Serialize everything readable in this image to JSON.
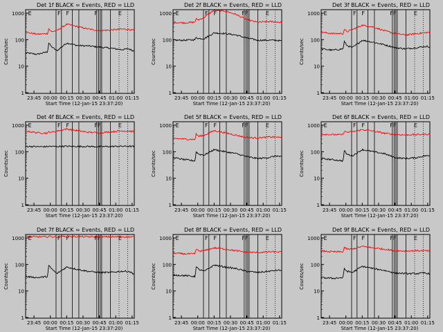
{
  "chart_data": [
    {
      "type": "line",
      "title": "Det 1f BLACK = Events, RED = LLD",
      "xlabel": "Start Time (12-Jan-15 23:37:20)",
      "ylabel": "Counts/sec",
      "xlim": [
        "23:37:20",
        "01:17:00"
      ],
      "ylim": [
        1,
        1000
      ],
      "yscale": "log",
      "x_ticks": [
        "23:45",
        "00:00",
        "00:15",
        "00:30",
        "00:45",
        "01:00",
        "01:15"
      ],
      "y_ticks": [
        "1",
        "10",
        "100",
        "1000"
      ],
      "markers": [
        "F",
        "F",
        "F",
        "E"
      ],
      "series": [
        {
          "name": "BLACK = Events",
          "color": "#000000",
          "x": [
            "23:37:20",
            "23:48:00",
            "23:57:30",
            "23:58:30",
            "00:01:00",
            "00:06:00",
            "00:15:00",
            "00:25:00",
            "00:35:00",
            "00:45:00",
            "00:55:00",
            "01:05:00",
            "01:12:00",
            "01:16:00"
          ],
          "y": [
            32,
            28,
            35,
            75,
            55,
            38,
            75,
            60,
            58,
            52,
            48,
            42,
            45,
            38
          ]
        },
        {
          "name": "RED = LLD",
          "color": "#ff0000",
          "x": [
            "23:37:20",
            "23:48:00",
            "23:57:30",
            "23:58:30",
            "00:01:00",
            "00:06:00",
            "00:15:00",
            "00:25:00",
            "00:35:00",
            "00:45:00",
            "00:55:00",
            "01:05:00",
            "01:12:00",
            "01:16:00"
          ],
          "y": [
            190,
            160,
            170,
            260,
            200,
            220,
            380,
            310,
            250,
            220,
            230,
            250,
            245,
            225
          ]
        }
      ]
    },
    {
      "type": "line",
      "title": "Det 2f BLACK = Events, RED = LLD",
      "xlabel": "Start Time (12-Jan-15 23:37:20)",
      "ylabel": "Counts/sec",
      "xlim": [
        "23:37:20",
        "01:17:00"
      ],
      "ylim": [
        1,
        1000
      ],
      "yscale": "log",
      "x_ticks": [
        "23:45",
        "00:00",
        "00:15",
        "00:30",
        "00:45",
        "01:00",
        "01:15"
      ],
      "y_ticks": [
        "1",
        "10",
        "100",
        "1000"
      ],
      "markers": [
        "F",
        "F",
        "FF",
        "E"
      ],
      "series": [
        {
          "name": "BLACK = Events",
          "color": "#000000",
          "x": [
            "23:37:20",
            "23:48:00",
            "23:57:30",
            "23:58:30",
            "00:01:00",
            "00:06:00",
            "00:15:00",
            "00:25:00",
            "00:35:00",
            "00:45:00",
            "00:55:00",
            "01:05:00",
            "01:12:00",
            "01:16:00"
          ],
          "y": [
            95,
            95,
            100,
            120,
            110,
            110,
            180,
            170,
            150,
            115,
            95,
            95,
            95,
            90
          ]
        },
        {
          "name": "RED = LLD",
          "color": "#ff0000",
          "x": [
            "23:37:20",
            "23:48:00",
            "23:57:30",
            "23:58:30",
            "00:01:00",
            "00:06:00",
            "00:15:00",
            "00:25:00",
            "00:35:00",
            "00:45:00",
            "00:55:00",
            "01:05:00",
            "01:12:00",
            "01:16:00"
          ],
          "y": [
            450,
            430,
            460,
            600,
            560,
            700,
            1300,
            1200,
            900,
            560,
            450,
            480,
            470,
            450
          ]
        }
      ]
    },
    {
      "type": "line",
      "title": "Det 3f BLACK = Events, RED = LLD",
      "xlabel": "Start Time (12-Jan-15 23:37:20)",
      "ylabel": "Counts/sec",
      "xlim": [
        "23:37:20",
        "01:17:00"
      ],
      "ylim": [
        1,
        1000
      ],
      "yscale": "log",
      "x_ticks": [
        "23:45",
        "00:00",
        "00:15",
        "00:30",
        "00:45",
        "01:00",
        "01:15"
      ],
      "y_ticks": [
        "1",
        "10",
        "100",
        "1000"
      ],
      "markers": [
        "F",
        "F",
        "FF",
        "E"
      ],
      "series": [
        {
          "name": "BLACK = Events",
          "color": "#000000",
          "x": [
            "23:37:20",
            "23:48:00",
            "23:57:30",
            "23:58:30",
            "00:01:00",
            "00:06:00",
            "00:15:00",
            "00:25:00",
            "00:35:00",
            "00:45:00",
            "00:55:00",
            "01:05:00",
            "01:12:00",
            "01:16:00"
          ],
          "y": [
            45,
            40,
            45,
            85,
            60,
            50,
            95,
            80,
            65,
            50,
            45,
            50,
            55,
            55
          ]
        },
        {
          "name": "RED = LLD",
          "color": "#ff0000",
          "x": [
            "23:37:20",
            "23:48:00",
            "23:57:30",
            "23:58:30",
            "00:01:00",
            "00:06:00",
            "00:15:00",
            "00:25:00",
            "00:35:00",
            "00:45:00",
            "00:55:00",
            "01:05:00",
            "01:12:00",
            "01:16:00"
          ],
          "y": [
            190,
            170,
            170,
            240,
            200,
            240,
            350,
            300,
            220,
            170,
            150,
            170,
            180,
            190
          ]
        }
      ]
    },
    {
      "type": "line",
      "title": "Det 4f BLACK = Events, RED = LLD",
      "xlabel": "Start Time (12-Jan-15 23:37:20)",
      "ylabel": "Counts/sec",
      "xlim": [
        "23:37:20",
        "01:17:00"
      ],
      "ylim": [
        1,
        1000
      ],
      "yscale": "log",
      "x_ticks": [
        "23:45",
        "00:00",
        "00:15",
        "00:30",
        "00:45",
        "01:00",
        "01:15"
      ],
      "y_ticks": [
        "1",
        "10",
        "100",
        "1000"
      ],
      "markers": [
        "F",
        "F",
        "FF",
        "E"
      ],
      "series": [
        {
          "name": "BLACK = Events",
          "color": "#000000",
          "x": [
            "23:37:20",
            "23:48:00",
            "23:57:30",
            "23:58:30",
            "00:01:00",
            "00:06:00",
            "00:15:00",
            "00:25:00",
            "00:35:00",
            "00:45:00",
            "00:55:00",
            "01:05:00",
            "01:12:00",
            "01:16:00"
          ],
          "y": [
            160,
            155,
            155,
            160,
            158,
            158,
            160,
            158,
            158,
            155,
            158,
            160,
            160,
            158
          ]
        },
        {
          "name": "RED = LLD",
          "color": "#ff0000",
          "x": [
            "23:37:20",
            "23:48:00",
            "23:57:30",
            "23:58:30",
            "00:01:00",
            "00:06:00",
            "00:15:00",
            "00:25:00",
            "00:35:00",
            "00:45:00",
            "00:55:00",
            "01:05:00",
            "01:12:00",
            "01:16:00"
          ],
          "y": [
            600,
            520,
            500,
            560,
            540,
            600,
            720,
            620,
            540,
            520,
            560,
            610,
            600,
            580
          ]
        }
      ]
    },
    {
      "type": "line",
      "title": "Det 5f BLACK = Events, RED = LLD",
      "xlabel": "Start Time (12-Jan-15 23:37:20)",
      "ylabel": "Counts/sec",
      "xlim": [
        "23:37:20",
        "01:17:00"
      ],
      "ylim": [
        1,
        1000
      ],
      "yscale": "log",
      "x_ticks": [
        "23:45",
        "00:00",
        "00:15",
        "00:30",
        "00:45",
        "01:00",
        "01:15"
      ],
      "y_ticks": [
        "1",
        "10",
        "100",
        "1000"
      ],
      "markers": [
        "F",
        "F",
        "FF",
        "E"
      ],
      "series": [
        {
          "name": "BLACK = Events",
          "color": "#000000",
          "x": [
            "23:37:20",
            "23:48:00",
            "23:57:30",
            "23:58:30",
            "00:01:00",
            "00:06:00",
            "00:15:00",
            "00:25:00",
            "00:35:00",
            "00:45:00",
            "00:55:00",
            "01:05:00",
            "01:12:00",
            "01:16:00"
          ],
          "y": [
            60,
            50,
            45,
            100,
            80,
            75,
            120,
            100,
            85,
            65,
            55,
            60,
            70,
            65
          ]
        },
        {
          "name": "RED = LLD",
          "color": "#ff0000",
          "x": [
            "23:37:20",
            "23:48:00",
            "23:57:30",
            "23:58:30",
            "00:01:00",
            "00:06:00",
            "00:15:00",
            "00:25:00",
            "00:35:00",
            "00:45:00",
            "00:55:00",
            "01:05:00",
            "01:12:00",
            "01:16:00"
          ],
          "y": [
            320,
            300,
            290,
            460,
            380,
            420,
            620,
            520,
            420,
            340,
            330,
            360,
            360,
            340
          ]
        }
      ]
    },
    {
      "type": "line",
      "title": "Det 6f BLACK = Events, RED = LLD",
      "xlabel": "Start Time (12-Jan-15 23:37:20)",
      "ylabel": "Counts/sec",
      "xlim": [
        "23:37:20",
        "01:17:00"
      ],
      "ylim": [
        1,
        1000
      ],
      "yscale": "log",
      "x_ticks": [
        "23:45",
        "00:00",
        "00:15",
        "00:30",
        "00:45",
        "01:00",
        "01:15"
      ],
      "y_ticks": [
        "1",
        "10",
        "100",
        "1000"
      ],
      "markers": [
        "F",
        "F",
        "FF",
        "E"
      ],
      "series": [
        {
          "name": "BLACK = Events",
          "color": "#000000",
          "x": [
            "23:37:20",
            "23:48:00",
            "23:57:30",
            "23:58:30",
            "00:01:00",
            "00:06:00",
            "00:15:00",
            "00:25:00",
            "00:35:00",
            "00:45:00",
            "00:55:00",
            "01:05:00",
            "01:12:00",
            "01:16:00"
          ],
          "y": [
            55,
            50,
            45,
            110,
            80,
            70,
            120,
            100,
            85,
            60,
            55,
            60,
            70,
            70
          ]
        },
        {
          "name": "RED = LLD",
          "color": "#ff0000",
          "x": [
            "23:37:20",
            "23:48:00",
            "23:57:30",
            "23:58:30",
            "00:01:00",
            "00:06:00",
            "00:15:00",
            "00:25:00",
            "00:35:00",
            "00:45:00",
            "00:55:00",
            "01:05:00",
            "01:12:00",
            "01:16:00"
          ],
          "y": [
            460,
            440,
            440,
            600,
            540,
            560,
            680,
            600,
            500,
            440,
            430,
            440,
            450,
            460
          ]
        }
      ]
    },
    {
      "type": "line",
      "title": "Det 7f BLACK = Events, RED = LLD",
      "xlabel": "Start Time (12-Jan-15 23:37:20)",
      "ylabel": "Counts/sec",
      "xlim": [
        "23:37:20",
        "01:17:00"
      ],
      "ylim": [
        1,
        1000
      ],
      "yscale": "log",
      "x_ticks": [
        "23:45",
        "00:00",
        "00:15",
        "00:30",
        "00:45",
        "01:00",
        "01:15"
      ],
      "y_ticks": [
        "1",
        "10",
        "100",
        "1000"
      ],
      "markers": [
        "F",
        "F",
        "FF",
        "E"
      ],
      "series": [
        {
          "name": "BLACK = Events",
          "color": "#000000",
          "x": [
            "23:37:20",
            "23:48:00",
            "23:57:30",
            "23:58:30",
            "00:01:00",
            "00:06:00",
            "00:15:00",
            "00:25:00",
            "00:35:00",
            "00:45:00",
            "00:55:00",
            "01:05:00",
            "01:12:00",
            "01:16:00"
          ],
          "y": [
            35,
            32,
            35,
            90,
            70,
            45,
            80,
            65,
            55,
            50,
            50,
            55,
            55,
            45
          ]
        },
        {
          "name": "RED = LLD",
          "color": "#ff0000",
          "x": [
            "23:37:20",
            "23:48:00",
            "23:57:30",
            "23:58:30",
            "00:01:00",
            "00:06:00",
            "00:15:00",
            "00:25:00",
            "00:35:00",
            "00:45:00",
            "00:55:00",
            "01:05:00",
            "01:12:00",
            "01:16:00"
          ],
          "y": [
            1100,
            1100,
            1100,
            1150,
            1100,
            1100,
            1150,
            1120,
            1100,
            1100,
            1100,
            1100,
            1100,
            1100
          ]
        }
      ]
    },
    {
      "type": "line",
      "title": "Det 8f BLACK = Events, RED = LLD",
      "xlabel": "Start Time (12-Jan-15 23:37:20)",
      "ylabel": "Counts/sec",
      "xlim": [
        "23:37:20",
        "01:17:00"
      ],
      "ylim": [
        1,
        1000
      ],
      "yscale": "log",
      "x_ticks": [
        "23:45",
        "00:00",
        "00:15",
        "00:30",
        "00:45",
        "01:00",
        "01:15"
      ],
      "y_ticks": [
        "1",
        "10",
        "100",
        "1000"
      ],
      "markers": [
        "F",
        "F",
        "FF",
        "E"
      ],
      "series": [
        {
          "name": "BLACK = Events",
          "color": "#000000",
          "x": [
            "23:37:20",
            "23:48:00",
            "23:57:30",
            "23:58:30",
            "00:01:00",
            "00:06:00",
            "00:15:00",
            "00:25:00",
            "00:35:00",
            "00:45:00",
            "00:55:00",
            "01:05:00",
            "01:12:00",
            "01:16:00"
          ],
          "y": [
            40,
            38,
            35,
            80,
            65,
            55,
            95,
            80,
            70,
            55,
            50,
            55,
            60,
            60
          ]
        },
        {
          "name": "RED = LLD",
          "color": "#ff0000",
          "x": [
            "23:37:20",
            "23:48:00",
            "23:57:30",
            "23:58:30",
            "00:01:00",
            "00:06:00",
            "00:15:00",
            "00:25:00",
            "00:35:00",
            "00:45:00",
            "00:55:00",
            "01:05:00",
            "01:12:00",
            "01:16:00"
          ],
          "y": [
            270,
            250,
            250,
            380,
            320,
            330,
            420,
            380,
            330,
            290,
            280,
            300,
            300,
            290
          ]
        }
      ]
    },
    {
      "type": "line",
      "title": "Det 9f BLACK = Events, RED = LLD",
      "xlabel": "Start Time (12-Jan-15 23:37:20)",
      "ylabel": "Counts/sec",
      "xlim": [
        "23:37:20",
        "01:17:00"
      ],
      "ylim": [
        1,
        1000
      ],
      "yscale": "log",
      "x_ticks": [
        "23:45",
        "00:00",
        "00:15",
        "00:30",
        "00:45",
        "01:00",
        "01:15"
      ],
      "y_ticks": [
        "1",
        "10",
        "100",
        "1000"
      ],
      "markers": [
        "F",
        "F",
        "FF",
        "E"
      ],
      "series": [
        {
          "name": "BLACK = Events",
          "color": "#000000",
          "x": [
            "23:37:20",
            "23:48:00",
            "23:57:30",
            "23:58:30",
            "00:01:00",
            "00:06:00",
            "00:15:00",
            "00:25:00",
            "00:35:00",
            "00:45:00",
            "00:55:00",
            "01:05:00",
            "01:12:00",
            "01:16:00"
          ],
          "y": [
            32,
            30,
            32,
            70,
            55,
            50,
            85,
            70,
            60,
            48,
            45,
            45,
            48,
            45
          ]
        },
        {
          "name": "RED = LLD",
          "color": "#ff0000",
          "x": [
            "23:37:20",
            "23:48:00",
            "23:57:30",
            "23:58:30",
            "00:01:00",
            "00:06:00",
            "00:15:00",
            "00:25:00",
            "00:35:00",
            "00:45:00",
            "00:55:00",
            "01:05:00",
            "01:12:00",
            "01:16:00"
          ],
          "y": [
            320,
            300,
            300,
            440,
            380,
            380,
            480,
            420,
            380,
            330,
            320,
            330,
            330,
            320
          ]
        }
      ]
    }
  ]
}
